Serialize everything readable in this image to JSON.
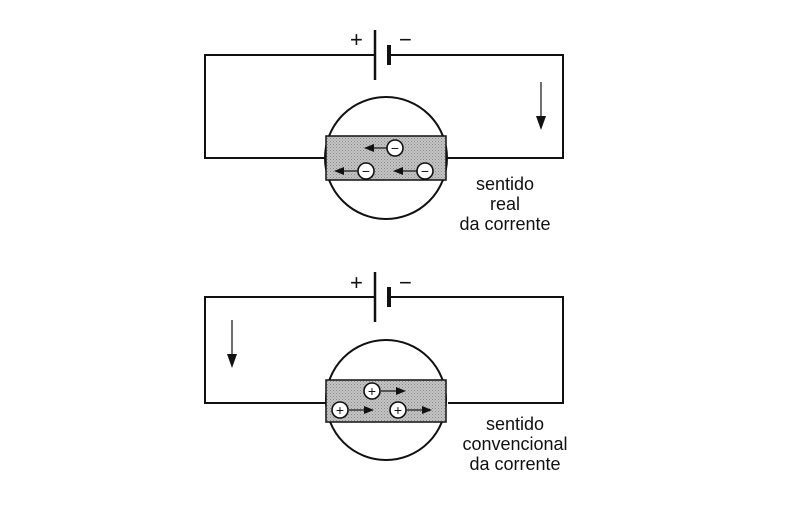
{
  "circuits": [
    {
      "battery": {
        "plus": "+",
        "minus": "−"
      },
      "current_direction": "down-right-side",
      "charge_symbol": "−",
      "charge_motion": "left",
      "caption": [
        "sentido",
        "real",
        "da corrente"
      ]
    },
    {
      "battery": {
        "plus": "+",
        "minus": "−"
      },
      "current_direction": "down-left-side",
      "charge_symbol": "+",
      "charge_motion": "right",
      "caption": [
        "sentido",
        "convencional",
        "da corrente"
      ]
    }
  ],
  "colors": {
    "line": "#111111",
    "band": "#b8b8b8",
    "background": "#ffffff"
  }
}
